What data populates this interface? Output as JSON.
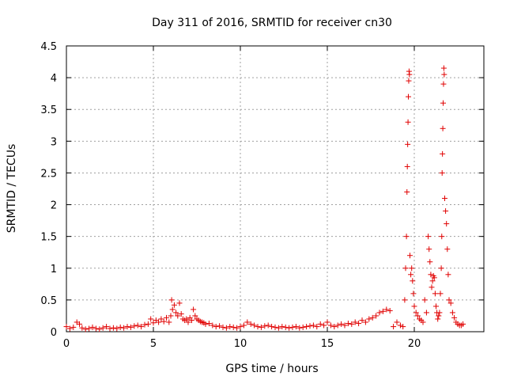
{
  "chart_data": {
    "type": "scatter",
    "title": "Day 311 of 2016, SRMTID for receiver cn30",
    "xlabel": "GPS time / hours",
    "ylabel": "SRMTID / TECUs",
    "xlim": [
      0,
      24
    ],
    "ylim": [
      0,
      4.5
    ],
    "xticks": [
      "0",
      "5",
      "10",
      "15",
      "20"
    ],
    "yticks": [
      "0",
      "0.5",
      "1",
      "1.5",
      "2",
      "2.5",
      "3",
      "3.5",
      "4",
      "4.5"
    ],
    "grid": true,
    "marker": "+",
    "color": "#e00000",
    "series": [
      {
        "name": "SRMTID",
        "x": [
          0.0,
          0.2,
          0.4,
          0.6,
          0.75,
          0.9,
          1.1,
          1.3,
          1.5,
          1.7,
          1.9,
          2.1,
          2.3,
          2.5,
          2.7,
          2.9,
          3.1,
          3.3,
          3.5,
          3.7,
          3.9,
          4.1,
          4.3,
          4.5,
          4.7,
          4.85,
          5.0,
          5.15,
          5.3,
          5.45,
          5.6,
          5.75,
          5.9,
          6.0,
          6.05,
          6.1,
          6.2,
          6.3,
          6.4,
          6.5,
          6.6,
          6.7,
          6.8,
          6.9,
          7.0,
          7.1,
          7.2,
          7.3,
          7.4,
          7.5,
          7.6,
          7.7,
          7.8,
          7.9,
          8.0,
          8.2,
          8.4,
          8.6,
          8.8,
          9.0,
          9.2,
          9.4,
          9.6,
          9.8,
          10.0,
          10.2,
          10.4,
          10.6,
          10.8,
          11.0,
          11.2,
          11.4,
          11.6,
          11.8,
          12.0,
          12.2,
          12.4,
          12.6,
          12.8,
          13.0,
          13.2,
          13.4,
          13.6,
          13.8,
          14.0,
          14.2,
          14.4,
          14.6,
          14.8,
          15.0,
          15.2,
          15.4,
          15.6,
          15.8,
          16.0,
          16.2,
          16.4,
          16.6,
          16.8,
          17.0,
          17.2,
          17.4,
          17.6,
          17.8,
          18.0,
          18.2,
          18.4,
          18.6,
          18.8,
          19.0,
          19.2,
          19.35,
          19.45,
          19.5,
          19.55,
          19.58,
          19.6,
          19.62,
          19.64,
          19.66,
          19.68,
          19.7,
          19.72,
          19.75,
          19.8,
          19.85,
          19.9,
          19.95,
          20.0,
          20.1,
          20.2,
          20.3,
          20.4,
          20.5,
          20.6,
          20.7,
          20.8,
          20.85,
          20.9,
          20.95,
          21.0,
          21.05,
          21.1,
          21.15,
          21.2,
          21.25,
          21.3,
          21.35,
          21.4,
          21.45,
          21.5,
          21.55,
          21.58,
          21.6,
          21.62,
          21.64,
          21.66,
          21.68,
          21.7,
          21.72,
          21.75,
          21.8,
          21.85,
          21.9,
          21.95,
          22.0,
          22.1,
          22.2,
          22.3,
          22.4,
          22.5,
          22.6,
          22.7,
          22.8
        ],
        "y": [
          0.08,
          0.05,
          0.07,
          0.15,
          0.12,
          0.06,
          0.04,
          0.05,
          0.07,
          0.05,
          0.04,
          0.06,
          0.08,
          0.05,
          0.06,
          0.05,
          0.07,
          0.06,
          0.08,
          0.07,
          0.09,
          0.1,
          0.08,
          0.11,
          0.12,
          0.2,
          0.14,
          0.18,
          0.15,
          0.2,
          0.16,
          0.22,
          0.15,
          0.25,
          0.5,
          0.35,
          0.42,
          0.3,
          0.25,
          0.45,
          0.28,
          0.2,
          0.18,
          0.2,
          0.15,
          0.22,
          0.18,
          0.35,
          0.25,
          0.2,
          0.18,
          0.16,
          0.15,
          0.14,
          0.12,
          0.13,
          0.1,
          0.08,
          0.09,
          0.07,
          0.06,
          0.08,
          0.07,
          0.06,
          0.08,
          0.1,
          0.15,
          0.12,
          0.1,
          0.08,
          0.07,
          0.09,
          0.1,
          0.08,
          0.07,
          0.06,
          0.08,
          0.07,
          0.06,
          0.07,
          0.08,
          0.06,
          0.07,
          0.08,
          0.09,
          0.1,
          0.08,
          0.12,
          0.1,
          0.15,
          0.1,
          0.08,
          0.1,
          0.12,
          0.1,
          0.13,
          0.12,
          0.15,
          0.13,
          0.18,
          0.15,
          0.2,
          0.22,
          0.25,
          0.3,
          0.32,
          0.35,
          0.33,
          0.08,
          0.15,
          0.1,
          0.08,
          0.5,
          1.0,
          1.5,
          2.2,
          2.6,
          2.95,
          3.3,
          3.7,
          3.95,
          4.1,
          4.05,
          1.2,
          0.9,
          1.0,
          0.8,
          0.6,
          0.4,
          0.3,
          0.25,
          0.2,
          0.18,
          0.15,
          0.5,
          0.3,
          1.5,
          1.3,
          1.1,
          0.9,
          0.7,
          0.8,
          0.88,
          0.85,
          0.6,
          0.4,
          0.3,
          0.2,
          0.25,
          0.3,
          0.6,
          1.0,
          1.5,
          2.5,
          2.8,
          3.2,
          3.6,
          3.9,
          4.15,
          4.05,
          2.1,
          1.9,
          1.7,
          1.3,
          0.9,
          0.5,
          0.45,
          0.3,
          0.22,
          0.15,
          0.12,
          0.1,
          0.1,
          0.12
        ]
      }
    ]
  }
}
